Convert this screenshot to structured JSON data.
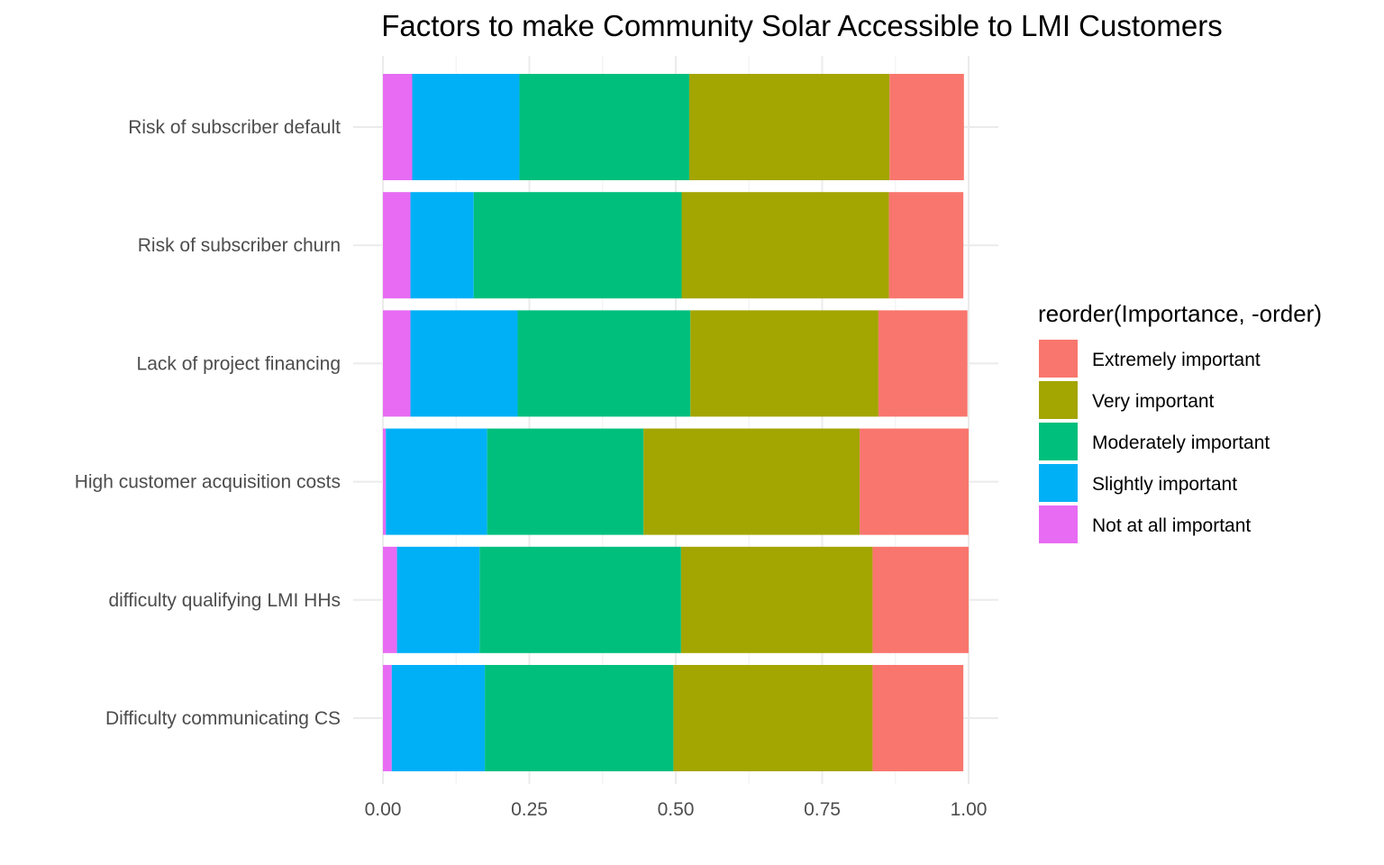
{
  "chart_data": {
    "type": "bar",
    "orientation": "horizontal",
    "stacked": true,
    "title": "Factors to make Community Solar Accessible to LMI Customers",
    "xlabel": "",
    "ylabel": "",
    "xlim": [
      0,
      1
    ],
    "x_ticks": [
      "0.00",
      "0.25",
      "0.50",
      "0.75",
      "1.00"
    ],
    "grid": true,
    "legend_title": "reorder(Importance, -order)",
    "legend_position": "right",
    "categories": [
      "Risk of subscriber default",
      "Risk of subscriber churn",
      "Lack of project financing",
      "High customer acquisition costs",
      "difficulty qualifying LMI HHs",
      "Difficulty communicating CS"
    ],
    "series": [
      {
        "name": "Not at all important",
        "color": "#E76BF3",
        "values": [
          0.05,
          0.047,
          0.047,
          0.005,
          0.024,
          0.015
        ]
      },
      {
        "name": "Slightly important",
        "color": "#00B0F6",
        "values": [
          0.183,
          0.108,
          0.183,
          0.173,
          0.141,
          0.159
        ]
      },
      {
        "name": "Moderately important",
        "color": "#00BF7D",
        "values": [
          0.29,
          0.355,
          0.295,
          0.267,
          0.344,
          0.322
        ]
      },
      {
        "name": "Very important",
        "color": "#A3A500",
        "values": [
          0.342,
          0.354,
          0.321,
          0.369,
          0.327,
          0.34
        ]
      },
      {
        "name": "Extremely important",
        "color": "#F8766D",
        "values": [
          0.127,
          0.127,
          0.152,
          0.186,
          0.164,
          0.155
        ]
      }
    ],
    "legend_order": [
      "Extremely important",
      "Very important",
      "Moderately important",
      "Slightly important",
      "Not at all important"
    ]
  }
}
